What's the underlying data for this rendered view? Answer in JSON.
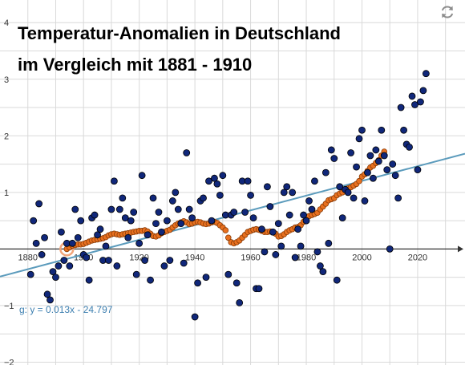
{
  "title_line1": "Temperatur-Anomalien in Deutschland",
  "title_line2": "im Vergleich mit 1881 - 1910",
  "equation_label": "g: y = 0.013x - 24.797",
  "refresh_icon": "refresh-icon",
  "colors": {
    "grid": "#d9d9d9",
    "axis": "#333333",
    "dots_fill": "#10277a",
    "dots_stroke": "#000000",
    "smooth_fill": "#e8701f",
    "smooth_stroke": "#8a3c08",
    "trend_line": "#5b9bbc",
    "equation_text": "#3d7fb0",
    "highlight": "#f2a57a"
  },
  "chart_data": {
    "type": "scatter",
    "title": "Temperatur-Anomalien in Deutschland im Vergleich mit 1881 - 1910",
    "xlabel": "",
    "ylabel": "",
    "xlim": [
      1870,
      2037
    ],
    "ylim": [
      -2.05,
      4.4
    ],
    "x_ticks": [
      "1880",
      "1900",
      "1920",
      "1940",
      "1960",
      "1980",
      "2000",
      "2020"
    ],
    "y_ticks": [
      "4",
      "3",
      "2",
      "1",
      "−1",
      "−2"
    ],
    "grid": true,
    "series": [
      {
        "kind": "scatter",
        "x": [
          1881,
          1882,
          1883,
          1884,
          1885,
          1886,
          1887,
          1888,
          1889,
          1890,
          1891,
          1892,
          1893,
          1894,
          1895,
          1896,
          1897,
          1898,
          1899,
          1900,
          1901,
          1902,
          1903,
          1904,
          1905,
          1906,
          1907,
          1908,
          1909,
          1910,
          1911,
          1912,
          1913,
          1914,
          1915,
          1916,
          1917,
          1918,
          1919,
          1920,
          1921,
          1922,
          1923,
          1924,
          1925,
          1926,
          1927,
          1928,
          1929,
          1930,
          1931,
          1932,
          1933,
          1934,
          1935,
          1936,
          1937,
          1938,
          1939,
          1940,
          1941,
          1942,
          1943,
          1944,
          1945,
          1946,
          1947,
          1948,
          1949,
          1950,
          1951,
          1952,
          1953,
          1954,
          1955,
          1956,
          1957,
          1958,
          1959,
          1960,
          1961,
          1962,
          1963,
          1964,
          1965,
          1966,
          1967,
          1968,
          1969,
          1970,
          1971,
          1972,
          1973,
          1974,
          1975,
          1976,
          1977,
          1978,
          1979,
          1980,
          1981,
          1982,
          1983,
          1984,
          1985,
          1986,
          1987,
          1988,
          1989,
          1990,
          1991,
          1992,
          1993,
          1994,
          1995,
          1996,
          1997,
          1998,
          1999,
          2000,
          2001,
          2002,
          2003,
          2004,
          2005,
          2006,
          2007,
          2008,
          2009,
          2010,
          2011,
          2012,
          2013,
          2014,
          2015,
          2016,
          2017,
          2018,
          2019,
          2020,
          2021,
          2022,
          2023
        ],
        "y": [
          -0.45,
          0.5,
          0.1,
          0.8,
          -0.1,
          0.2,
          -0.8,
          -0.9,
          -0.4,
          -0.5,
          -0.3,
          0.3,
          -0.2,
          0.1,
          -0.3,
          0.1,
          0.7,
          0.2,
          0.5,
          -0.1,
          -0.15,
          -0.55,
          0.55,
          0.6,
          0.25,
          0.35,
          -0.2,
          0.05,
          -0.2,
          0.7,
          1.2,
          -0.3,
          0.7,
          0.9,
          0.55,
          0.2,
          0.5,
          0.65,
          -0.45,
          0.1,
          1.3,
          -0.2,
          0.25,
          -0.55,
          0.9,
          0.45,
          0.65,
          0.3,
          -0.3,
          0.5,
          -0.2,
          0.85,
          1.0,
          0.7,
          0.45,
          -0.25,
          1.7,
          0.7,
          0.55,
          -1.2,
          -0.6,
          0.85,
          0.9,
          -0.5,
          1.2,
          0.5,
          1.25,
          1.15,
          0.95,
          1.3,
          0.6,
          -0.45,
          0.6,
          0.65,
          -0.6,
          -0.95,
          1.2,
          0.65,
          1.2,
          0.95,
          0.55,
          -0.7,
          -0.7,
          0.35,
          -0.05,
          1.1,
          0.75,
          0.3,
          -0.1,
          0.45,
          0.05,
          1.0,
          1.1,
          0.6,
          1.0,
          -0.15,
          0.35,
          0.05,
          0.6,
          0.5,
          0.85,
          0.7,
          1.2,
          -0.05,
          -0.3,
          -0.4,
          1.35,
          0.1,
          1.75,
          1.6,
          -0.55,
          1.1,
          0.55,
          1.05,
          1.0,
          1.7,
          0.9,
          1.45,
          1.95,
          2.1,
          0.85,
          1.35,
          1.65,
          1.25,
          1.75,
          1.55,
          2.1,
          1.65,
          1.4,
          0.0,
          1.5,
          1.3,
          0.9,
          2.5,
          2.1,
          1.85,
          1.8,
          2.7,
          2.55,
          1.4,
          2.6,
          2.8,
          3.1
        ]
      },
      {
        "kind": "smoothed",
        "x": [
          1894,
          1895,
          1896,
          1897,
          1898,
          1899,
          1900,
          1901,
          1902,
          1903,
          1904,
          1905,
          1906,
          1907,
          1908,
          1909,
          1910,
          1911,
          1912,
          1913,
          1914,
          1915,
          1916,
          1917,
          1918,
          1919,
          1920,
          1921,
          1922,
          1923,
          1924,
          1925,
          1926,
          1927,
          1928,
          1929,
          1930,
          1931,
          1932,
          1933,
          1934,
          1935,
          1936,
          1937,
          1938,
          1939,
          1940,
          1941,
          1942,
          1943,
          1944,
          1945,
          1946,
          1947,
          1948,
          1949,
          1950,
          1951,
          1952,
          1953,
          1954,
          1955,
          1956,
          1957,
          1958,
          1959,
          1960,
          1961,
          1962,
          1963,
          1964,
          1965,
          1966,
          1967,
          1968,
          1969,
          1970,
          1971,
          1972,
          1973,
          1974,
          1975,
          1976,
          1977,
          1978,
          1979,
          1980,
          1981,
          1982,
          1983,
          1984,
          1985,
          1986,
          1987,
          1988,
          1989,
          1990,
          1991,
          1992,
          1993,
          1994,
          1995,
          1996,
          1997,
          1998,
          1999,
          2000,
          2001,
          2002,
          2003,
          2004,
          2005,
          2006,
          2007,
          2008
        ],
        "y": [
          0.0,
          0.03,
          0.06,
          0.07,
          0.08,
          0.08,
          0.09,
          0.11,
          0.13,
          0.15,
          0.16,
          0.17,
          0.18,
          0.19,
          0.21,
          0.24,
          0.26,
          0.27,
          0.26,
          0.25,
          0.26,
          0.27,
          0.28,
          0.29,
          0.3,
          0.31,
          0.32,
          0.32,
          0.33,
          0.31,
          0.27,
          0.23,
          0.22,
          0.24,
          0.28,
          0.3,
          0.32,
          0.34,
          0.38,
          0.42,
          0.45,
          0.47,
          0.49,
          0.47,
          0.44,
          0.45,
          0.47,
          0.48,
          0.47,
          0.45,
          0.44,
          0.45,
          0.47,
          0.48,
          0.46,
          0.42,
          0.38,
          0.33,
          0.2,
          0.12,
          0.1,
          0.12,
          0.15,
          0.2,
          0.25,
          0.3,
          0.32,
          0.34,
          0.35,
          0.34,
          0.32,
          0.3,
          0.3,
          0.31,
          0.3,
          0.27,
          0.22,
          0.23,
          0.26,
          0.3,
          0.33,
          0.35,
          0.38,
          0.39,
          0.42,
          0.48,
          0.54,
          0.58,
          0.6,
          0.62,
          0.64,
          0.7,
          0.75,
          0.8,
          0.86,
          0.88,
          0.9,
          0.95,
          0.98,
          1.0,
          1.05,
          1.07,
          1.09,
          1.12,
          1.15,
          1.2,
          1.28,
          1.32,
          1.38,
          1.44,
          1.47,
          1.52,
          1.57,
          1.65,
          1.72
        ]
      },
      {
        "kind": "trend",
        "slope": 0.013,
        "intercept": -24.797
      }
    ]
  }
}
